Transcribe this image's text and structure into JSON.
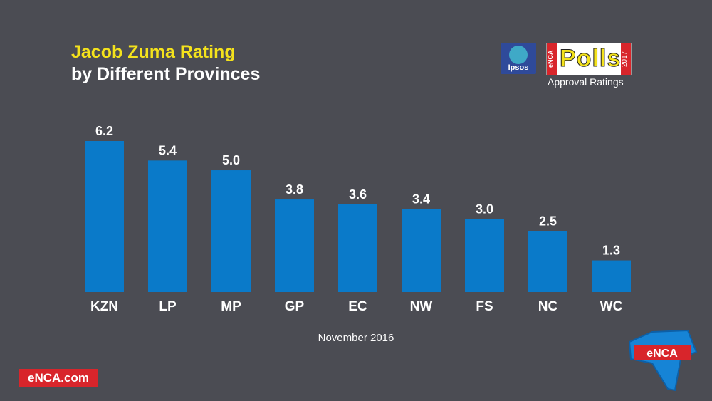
{
  "header": {
    "title_line1": "Jacob Zuma Rating",
    "title_line2": "by Different Provinces"
  },
  "logos": {
    "ipsos_label": "Ipsos",
    "polls_word": "Polls",
    "polls_enca": "eNCA",
    "polls_year": "2017",
    "approval_text": "Approval Ratings"
  },
  "footer": {
    "date_label": "November 2016",
    "site_badge": "eNCA.com",
    "shield_text": "eNCA"
  },
  "colors": {
    "background": "#4b4c53",
    "bar": "#0a7ac9",
    "title_accent": "#f4e21c",
    "brand_red": "#d8252b"
  },
  "chart_data": {
    "type": "bar",
    "categories": [
      "KZN",
      "LP",
      "MP",
      "GP",
      "EC",
      "NW",
      "FS",
      "NC",
      "WC"
    ],
    "values": [
      6.2,
      5.4,
      5.0,
      3.8,
      3.6,
      3.4,
      3.0,
      2.5,
      1.3
    ],
    "value_labels": [
      "6.2",
      "5.4",
      "5.0",
      "3.8",
      "3.6",
      "3.4",
      "3.0",
      "2.5",
      "1.3"
    ],
    "ylim": [
      0,
      6.2
    ],
    "grid": false,
    "legend": "none"
  }
}
